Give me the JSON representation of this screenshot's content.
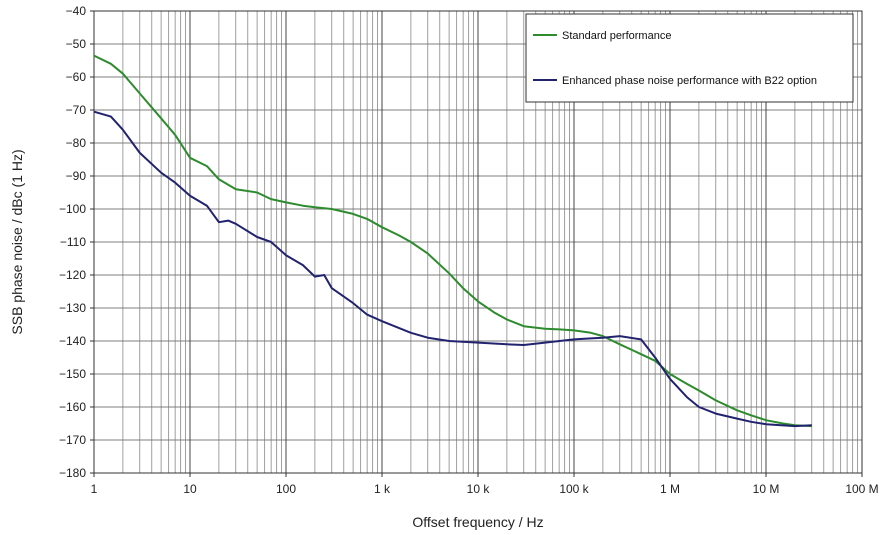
{
  "chart_data": {
    "type": "line",
    "xlabel": "Offset frequency / Hz",
    "ylabel": "SSB phase noise / dBc (1 Hz)",
    "xscale": "log",
    "xlim": [
      1,
      100000000
    ],
    "ylim": [
      -180,
      -40
    ],
    "yticks": [
      -40,
      -50,
      -60,
      -70,
      -80,
      -90,
      -100,
      -110,
      -120,
      -130,
      -140,
      -150,
      -160,
      -170,
      -180
    ],
    "ytick_labels": [
      "−40",
      "−50",
      "−60",
      "−70",
      "−80",
      "−90",
      "−100",
      "−110",
      "−120",
      "−130",
      "−140",
      "−150",
      "−160",
      "−170",
      "−180"
    ],
    "xticks": [
      1,
      10,
      100,
      1000,
      10000,
      100000,
      1000000,
      10000000,
      100000000
    ],
    "xtick_labels": [
      "1",
      "10",
      "100",
      "1 k",
      "10 k",
      "100 k",
      "1 M",
      "10 M",
      "100 M"
    ],
    "grid": true,
    "legend_position": "top-right",
    "series": [
      {
        "name": "Standard performance",
        "color": "#2e8b2e",
        "x": [
          1,
          1.5,
          2,
          3,
          5,
          7,
          10,
          15,
          20,
          30,
          50,
          70,
          100,
          150,
          200,
          300,
          500,
          700,
          1000,
          1500,
          2000,
          3000,
          5000,
          7000,
          10000,
          15000,
          20000,
          30000,
          50000,
          70000,
          100000,
          150000,
          200000,
          300000,
          500000,
          700000,
          1000000,
          1500000,
          2000000,
          3000000,
          5000000,
          7000000,
          10000000,
          15000000,
          20000000,
          30000000
        ],
        "y": [
          -53.5,
          -56,
          -59,
          -65,
          -72.5,
          -77.5,
          -84.5,
          -87,
          -91,
          -94,
          -95,
          -97,
          -98,
          -99,
          -99.5,
          -100,
          -101.5,
          -103,
          -105.5,
          -108,
          -110,
          -113.5,
          -119.5,
          -124,
          -128,
          -131.5,
          -133.5,
          -135.5,
          -136.3,
          -136.5,
          -136.8,
          -137.5,
          -138.5,
          -141,
          -144,
          -146,
          -150,
          -153,
          -155,
          -158,
          -161,
          -162.5,
          -164,
          -165,
          -165.5,
          -165.8
        ]
      },
      {
        "name": "Enhanced phase noise performance with B22 option",
        "color": "#22236e",
        "x": [
          1,
          1.5,
          2,
          3,
          5,
          7,
          10,
          15,
          20,
          25,
          30,
          50,
          70,
          100,
          150,
          200,
          250,
          300,
          500,
          700,
          1000,
          2000,
          3000,
          5000,
          10000,
          20000,
          30000,
          50000,
          100000,
          150000,
          200000,
          300000,
          500000,
          700000,
          1000000,
          1500000,
          2000000,
          3000000,
          5000000,
          7000000,
          10000000,
          20000000,
          30000000
        ],
        "y": [
          -70.5,
          -72,
          -76,
          -83,
          -89,
          -92,
          -96,
          -99,
          -104,
          -103.5,
          -104.5,
          -108.5,
          -110,
          -114,
          -117,
          -120.5,
          -120,
          -124,
          -128.5,
          -132,
          -134,
          -137.5,
          -139,
          -140,
          -140.5,
          -141,
          -141.2,
          -140.5,
          -139.5,
          -139.2,
          -139,
          -138.5,
          -139.5,
          -145,
          -151.5,
          -157,
          -160,
          -162,
          -163.5,
          -164.5,
          -165.2,
          -165.8,
          -165.5
        ]
      }
    ]
  }
}
